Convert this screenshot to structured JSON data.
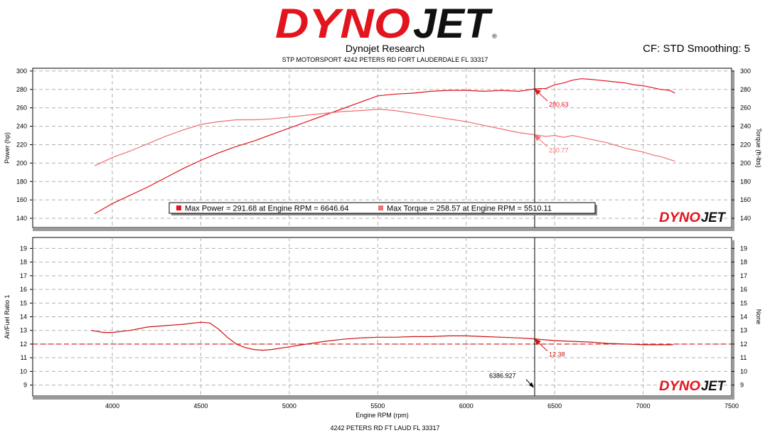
{
  "header": {
    "logo_text": "DYNOJET",
    "company": "Dynojet Research",
    "address": "STP MOTORSPORT 4242 PETERS RD FORT LAUDERDALE FL 33317",
    "cf_smoothing": "CF: STD Smoothing: 5"
  },
  "footer": {
    "text": "4242 PETERS RD FT LAUD FL 33317"
  },
  "colors": {
    "power": "#e2141e",
    "torque": "#f07070",
    "afr": "#cc1111",
    "grid": "#b0b0b0",
    "cursor": "#000000"
  },
  "chart_data": [
    {
      "type": "line",
      "xlabel": "",
      "ylabel": "Power (hp)",
      "y2label": "Torque (ft-lbs)",
      "xlim": [
        3550,
        7500
      ],
      "ylim": [
        130,
        303
      ],
      "xticks": [
        4000,
        4500,
        5000,
        5500,
        6000,
        6500,
        7000,
        7500
      ],
      "yticks": [
        140,
        160,
        180,
        200,
        220,
        240,
        260,
        280,
        300
      ],
      "watermark": "DYNOJET",
      "legend": "Max Power = 291.68 at Engine RPM = 6646.64  Max Torque = 258.57 at Engine RPM = 5510.11",
      "legend_entries": [
        {
          "text": "Max Power = 291.68 at Engine RPM = 6646.64",
          "color": "#e2141e"
        },
        {
          "text": "Max Torque = 258.57 at Engine RPM = 5510.11",
          "color": "#f07070"
        }
      ],
      "series": [
        {
          "name": "Power",
          "color": "#e2141e",
          "x": [
            3900,
            4000,
            4100,
            4200,
            4300,
            4400,
            4500,
            4600,
            4700,
            4800,
            4900,
            5000,
            5100,
            5200,
            5300,
            5400,
            5500,
            5600,
            5700,
            5800,
            5900,
            6000,
            6100,
            6200,
            6300,
            6386.927,
            6450,
            6500,
            6550,
            6600,
            6650,
            6700,
            6750,
            6800,
            6850,
            6900,
            6950,
            7000,
            7050,
            7100,
            7150,
            7180
          ],
          "values": [
            145,
            156,
            165,
            174,
            184,
            194,
            203,
            211,
            218,
            224,
            231,
            238,
            245,
            252,
            259,
            266,
            273,
            275,
            276,
            278,
            279,
            279,
            278,
            279,
            278,
            280.63,
            281,
            285,
            287,
            290,
            291.68,
            291,
            290,
            289,
            288,
            287,
            285,
            284,
            282,
            280,
            279,
            276
          ]
        },
        {
          "name": "Torque",
          "color": "#f07070",
          "x": [
            3900,
            4000,
            4100,
            4200,
            4300,
            4400,
            4500,
            4600,
            4700,
            4800,
            4900,
            5000,
            5100,
            5200,
            5300,
            5400,
            5510.11,
            5600,
            5700,
            5800,
            5900,
            6000,
            6100,
            6200,
            6300,
            6386.927,
            6450,
            6500,
            6550,
            6600,
            6650,
            6700,
            6750,
            6800,
            6850,
            6900,
            6950,
            7000,
            7050,
            7100,
            7180
          ],
          "values": [
            197,
            206,
            213,
            221,
            229,
            236,
            242,
            245,
            247,
            247,
            248,
            250,
            252,
            254,
            256,
            257,
            258.57,
            257,
            254,
            251,
            248,
            245,
            241,
            237,
            233,
            230.77,
            229,
            230,
            228,
            230,
            228,
            226,
            224,
            222,
            219,
            216,
            214,
            212,
            209,
            207,
            202
          ]
        }
      ],
      "annotations": [
        {
          "text": "280.63",
          "x": 6386.927,
          "y": 280.63,
          "color": "#e2141e"
        },
        {
          "text": "230.77",
          "x": 6386.927,
          "y": 230.77,
          "color": "#f07070"
        }
      ],
      "cursor_x": 6386.927
    },
    {
      "type": "line",
      "xlabel": "Engine RPM (rpm)",
      "ylabel": "Air/Fuel Ratio 1",
      "y2label": "None",
      "xlim": [
        3550,
        7500
      ],
      "ylim": [
        8.2,
        19.8
      ],
      "xticks": [
        4000,
        4500,
        5000,
        5500,
        6000,
        6500,
        7000,
        7500
      ],
      "yticks": [
        9,
        10,
        11,
        12,
        13,
        14,
        15,
        16,
        17,
        18,
        19
      ],
      "reference_line": 12,
      "watermark": "DYNOJET",
      "series": [
        {
          "name": "Air/Fuel Ratio 1",
          "color": "#cc1111",
          "x": [
            3880,
            3950,
            4000,
            4100,
            4200,
            4300,
            4400,
            4500,
            4550,
            4600,
            4650,
            4700,
            4750,
            4800,
            4850,
            4900,
            5000,
            5100,
            5200,
            5300,
            5400,
            5500,
            5600,
            5700,
            5800,
            5900,
            6000,
            6100,
            6200,
            6300,
            6386.927,
            6500,
            6600,
            6700,
            6800,
            6900,
            7000,
            7100,
            7170
          ],
          "values": [
            13.0,
            12.85,
            12.85,
            13.0,
            13.25,
            13.35,
            13.45,
            13.6,
            13.55,
            13.1,
            12.5,
            12.0,
            11.75,
            11.6,
            11.55,
            11.6,
            11.8,
            12.0,
            12.2,
            12.35,
            12.45,
            12.5,
            12.5,
            12.55,
            12.55,
            12.6,
            12.6,
            12.55,
            12.5,
            12.45,
            12.38,
            12.25,
            12.2,
            12.15,
            12.05,
            12.0,
            11.95,
            11.95,
            11.95
          ]
        }
      ],
      "annotations": [
        {
          "text": "12.38",
          "x": 6386.927,
          "y": 12.38,
          "color": "#cc1111"
        },
        {
          "text": "6386.927",
          "x": 6386.927,
          "y": 9,
          "color": "#000000"
        }
      ],
      "cursor_x": 6386.927
    }
  ]
}
